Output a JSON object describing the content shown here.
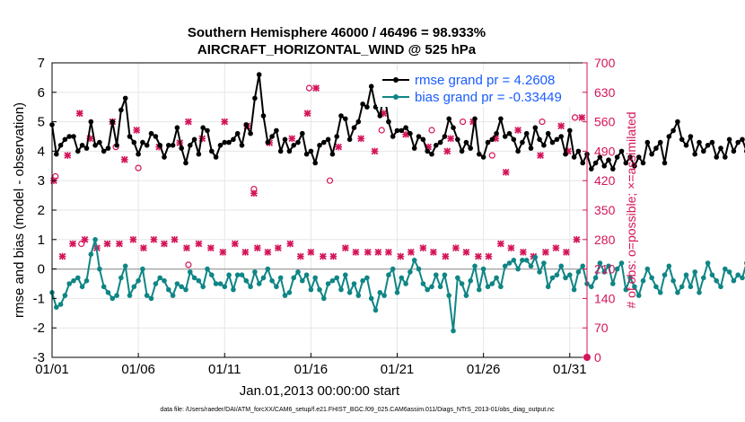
{
  "chart_data": {
    "type": "line",
    "title": "Southern Hemisphere 46000 / 46496 = 98.933%",
    "subtitle": "AIRCRAFT_HORIZONTAL_WIND @ 525 hPa",
    "xlabel": "Jan.01,2013 00:00:00 start",
    "ylabel": "rmse and bias (model - observation)",
    "y2label": "# of obs: o=possible; ×=assimilated",
    "footnote": "data file: /Users/raeder/DAI/ATM_forcXX/CAM6_setup/f.e21.FHIST_BGC.f09_025.CAM6assim.011/Diags_NTrS_2013-01/obs_diag_output.nc",
    "xlim": [
      1,
      32
    ],
    "ylim": [
      -3,
      7
    ],
    "y2lim": [
      0,
      700
    ],
    "x_ticks": [
      1,
      6,
      11,
      16,
      21,
      26,
      31
    ],
    "x_tick_labels": [
      "01/01",
      "01/06",
      "01/11",
      "01/16",
      "01/21",
      "01/26",
      "01/31"
    ],
    "y_ticks": [
      -3,
      -2,
      -1,
      0,
      1,
      2,
      3,
      4,
      5,
      6,
      7
    ],
    "y_tick_labels": [
      "-3",
      "-2",
      "-1",
      "0",
      "1",
      "2",
      "3",
      "4",
      "5",
      "6",
      "7"
    ],
    "y2_ticks": [
      0,
      70,
      140,
      210,
      280,
      350,
      420,
      490,
      560,
      630,
      700
    ],
    "y2_tick_labels": [
      "0",
      "70",
      "140",
      "210",
      "280",
      "350",
      "420",
      "490",
      "560",
      "630",
      "700"
    ],
    "zero_line": 0,
    "colors": {
      "rmse": "#000000",
      "bias": "#0f8585",
      "obs": "#d4145a",
      "legend_text": "#1a5cff",
      "zero_line": "#aaaaaa"
    },
    "series": [
      {
        "name": "rmse grand pr = 4.2608",
        "kind": "rmse",
        "x_start": 1.0,
        "x_step": 0.25,
        "values": [
          4.9,
          3.9,
          4.2,
          4.4,
          4.5,
          4.5,
          4.0,
          4.2,
          4.1,
          5.0,
          4.2,
          4.3,
          4.0,
          4.1,
          5.0,
          4.2,
          5.4,
          5.8,
          4.5,
          4.3,
          3.9,
          4.3,
          4.2,
          4.6,
          4.5,
          4.2,
          3.8,
          4.2,
          4.2,
          4.8,
          4.1,
          3.6,
          4.2,
          4.4,
          3.9,
          4.8,
          4.7,
          4.0,
          3.8,
          4.2,
          4.3,
          4.3,
          4.4,
          4.6,
          4.2,
          4.9,
          4.6,
          5.8,
          6.6,
          5.2,
          4.3,
          4.5,
          4.7,
          4.0,
          4.4,
          4.0,
          4.2,
          4.3,
          4.6,
          3.9,
          4.0,
          3.6,
          4.2,
          4.3,
          4.4,
          3.9,
          4.5,
          5.2,
          5.1,
          4.4,
          4.8,
          5.0,
          5.6,
          5.5,
          6.2,
          5.5,
          5.2,
          6.0,
          5.0,
          4.5,
          4.7,
          4.7,
          4.8,
          4.6,
          4.1,
          4.5,
          4.4,
          4.0,
          3.9,
          4.2,
          4.3,
          4.5,
          5.1,
          4.8,
          4.4,
          4.0,
          4.3,
          4.1,
          5.1,
          3.9,
          3.8,
          4.3,
          4.4,
          4.6,
          5.1,
          4.5,
          4.6,
          4.4,
          4.0,
          4.3,
          4.6,
          4.1,
          4.8,
          4.4,
          4.2,
          4.6,
          4.3,
          4.4,
          4.5,
          3.9,
          4.7,
          3.8,
          4.0,
          3.6,
          3.9,
          3.4,
          3.6,
          3.8,
          3.5,
          3.7,
          3.4,
          3.8,
          4.0,
          3.6,
          3.8,
          3.5,
          3.8,
          3.6,
          4.3,
          3.9,
          4.1,
          4.3,
          3.6,
          4.5,
          4.7,
          5.0,
          4.4,
          4.2,
          4.5,
          3.9,
          4.3,
          4.0,
          4.2,
          4.3,
          3.8,
          4.1,
          3.8,
          4.4,
          4.0,
          4.3,
          4.4,
          4.0,
          4.6,
          4.1,
          4.5,
          4.2,
          4.4,
          4.0,
          4.4,
          3.8,
          4.5,
          4.1,
          4.7,
          3.6,
          4.1,
          4.7,
          4.4,
          4.0,
          4.2,
          4.6,
          4.4,
          4.3,
          4.6,
          4.4,
          4.5,
          4.2,
          4.3,
          4.8,
          4.4,
          4.6,
          4.0,
          4.4,
          3.8,
          4.1,
          3.8,
          3.9,
          3.7,
          4.0,
          4.2,
          3.8,
          3.6,
          4.1,
          3.5,
          3.7,
          3.5,
          3.4,
          3.6,
          3.3,
          4.2
        ]
      },
      {
        "name": "bias grand pr = -0.33449",
        "kind": "bias",
        "x_start": 1.0,
        "x_step": 0.25,
        "values": [
          -0.8,
          -1.3,
          -1.2,
          -0.9,
          -0.5,
          -0.4,
          -0.3,
          -0.6,
          -0.4,
          0.5,
          1.0,
          0.0,
          -0.6,
          -0.8,
          -1.0,
          -0.9,
          -0.3,
          0.1,
          -0.9,
          -0.6,
          -0.4,
          0.0,
          -0.9,
          -1.0,
          -0.5,
          -0.3,
          -0.4,
          -0.7,
          -0.9,
          -0.5,
          -0.6,
          -0.7,
          -0.1,
          -0.3,
          -0.4,
          -0.6,
          0.0,
          -0.2,
          -0.5,
          -0.5,
          -0.6,
          -0.2,
          -0.7,
          -0.2,
          -0.2,
          -0.4,
          -0.6,
          -0.1,
          -0.5,
          -0.3,
          0.0,
          -0.4,
          -0.6,
          -0.3,
          -0.9,
          -0.8,
          -0.3,
          -0.1,
          -0.4,
          -0.2,
          -0.7,
          -0.3,
          -0.7,
          -1.0,
          -0.5,
          -0.4,
          -0.3,
          -0.7,
          -0.2,
          -0.8,
          -0.5,
          -0.9,
          -0.4,
          -0.3,
          -1.0,
          -1.4,
          -0.8,
          -0.9,
          -0.2,
          0.0,
          -0.8,
          -0.3,
          -0.5,
          -0.1,
          0.3,
          0.0,
          -0.5,
          -0.7,
          -0.6,
          -0.2,
          -0.6,
          -0.2,
          -0.9,
          -2.1,
          -0.3,
          -0.5,
          -0.9,
          -0.4,
          0.1,
          -0.7,
          0.0,
          -0.6,
          -0.5,
          -0.3,
          -0.6,
          0.1,
          0.2,
          0.3,
          0.0,
          0.3,
          0.3,
          0.1,
          0.4,
          -0.1,
          0.2,
          -0.6,
          -0.3,
          -0.2,
          0.1,
          -0.3,
          -0.2,
          -0.7,
          -0.1,
          0.1,
          -0.5,
          -0.6,
          -0.3,
          0.2,
          -0.1,
          0.1,
          -0.5,
          0.0,
          0.2,
          -0.7,
          -0.3,
          -0.6,
          -0.9,
          -0.4,
          0.0,
          -0.3,
          -0.6,
          -0.8,
          -0.2,
          0.1,
          -0.4,
          -0.8,
          -0.6,
          -0.2,
          -0.6,
          -0.1,
          -0.8,
          -0.3,
          0.2,
          -0.2,
          -0.4,
          -0.6,
          0.0,
          -0.1,
          -0.4,
          -0.2,
          -0.3,
          0.2,
          0.0,
          -0.4,
          -0.2,
          -0.7,
          -1.1,
          -0.6,
          -0.8,
          -0.6,
          -0.3,
          -1.0,
          -0.4,
          -0.5,
          -0.8,
          -0.5,
          -0.3,
          0.0,
          -0.5,
          -0.2,
          0.2,
          0.6,
          0.0,
          -0.7,
          -0.5,
          -0.2,
          -0.4,
          -0.7,
          -0.1,
          -0.3,
          0.1,
          -0.5,
          -0.1,
          -0.5,
          -0.8,
          -0.6,
          0.0,
          -0.3,
          -0.4,
          -0.1,
          -0.2,
          -0.5,
          -0.1,
          -0.3,
          -0.1,
          -0.1
        ]
      },
      {
        "name": "# of obs assimilated (pr)",
        "kind": "obs_assimilated",
        "axis": "right",
        "x": [
          1.1,
          1.6,
          2.2,
          2.9,
          3.6,
          4.2,
          4.9,
          5.7,
          6.3,
          6.9,
          7.5,
          8.1,
          8.8,
          9.5,
          10.2,
          10.9,
          11.6,
          12.2,
          12.9,
          13.5,
          14.1,
          14.8,
          15.4,
          16.0,
          16.7,
          17.3,
          18.0,
          18.6,
          19.3,
          19.9,
          20.5,
          21.2,
          21.8,
          22.5,
          23.1,
          23.8,
          24.4,
          25.0,
          25.7,
          26.3,
          27.0,
          27.6,
          28.3,
          28.9,
          29.6,
          30.2,
          30.8,
          31.4,
          1.9,
          3.2,
          4.5,
          5.9,
          7.2,
          8.4,
          9.7,
          11.0,
          12.3,
          13.6,
          14.9,
          16.3,
          17.6,
          18.9,
          20.2,
          21.5,
          22.8,
          24.1,
          25.4,
          26.7,
          28.0,
          29.3,
          30.5,
          31.7,
          2.6,
          5.2,
          8.9,
          12.7,
          15.8,
          19.7,
          23.9,
          27.3,
          30.9
        ],
        "values": [
          420,
          240,
          270,
          280,
          260,
          270,
          270,
          280,
          260,
          280,
          270,
          280,
          260,
          270,
          260,
          250,
          270,
          250,
          260,
          250,
          260,
          270,
          240,
          250,
          240,
          240,
          260,
          250,
          250,
          250,
          250,
          240,
          250,
          260,
          250,
          240,
          260,
          250,
          240,
          240,
          270,
          260,
          250,
          240,
          250,
          260,
          250,
          280,
          480,
          520,
          560,
          540,
          500,
          510,
          520,
          560,
          550,
          510,
          520,
          640,
          500,
          520,
          580,
          530,
          500,
          520,
          560,
          520,
          540,
          480,
          550,
          570,
          580,
          470,
          560,
          390,
          580,
          490,
          490,
          440,
          490
        ]
      },
      {
        "name": "# of obs possible (pr)",
        "kind": "obs_possible",
        "axis": "right",
        "x": [
          1.2,
          2.7,
          4.7,
          6.0,
          8.9,
          12.7,
          15.9,
          17.1,
          20.1,
          23.0,
          24.8,
          26.5,
          29.4,
          31.3
        ],
        "values": [
          430,
          270,
          500,
          450,
          220,
          400,
          640,
          420,
          540,
          540,
          560,
          480,
          560,
          570
        ]
      }
    ]
  },
  "legend": {
    "rmse_label": "rmse grand pr = 4.2608",
    "bias_label": "bias grand pr = -0.33449"
  }
}
